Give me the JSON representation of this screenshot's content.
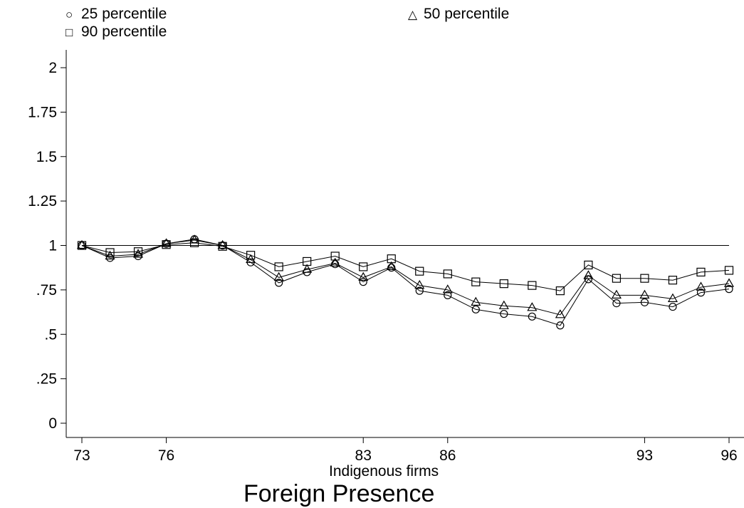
{
  "chart_data": {
    "type": "line",
    "title": "Foreign Presence",
    "xlabel": "Indigenous firms",
    "ylabel": "",
    "xlim": [
      73,
      96
    ],
    "ylim": [
      0,
      2
    ],
    "xticks": [
      73,
      76,
      83,
      86,
      93,
      96
    ],
    "yticks": [
      {
        "value": 0,
        "label": "0"
      },
      {
        "value": 0.25,
        "label": ".25"
      },
      {
        "value": 0.5,
        "label": ".5"
      },
      {
        "value": 0.75,
        "label": ".75"
      },
      {
        "value": 1,
        "label": "1"
      },
      {
        "value": 1.25,
        "label": "1.25"
      },
      {
        "value": 1.5,
        "label": "1.5"
      },
      {
        "value": 1.75,
        "label": "1.75"
      },
      {
        "value": 2,
        "label": "2"
      }
    ],
    "reference_line": 1,
    "grid": false,
    "legend_position": "top",
    "x": [
      73,
      74,
      75,
      76,
      77,
      78,
      79,
      80,
      81,
      82,
      83,
      84,
      85,
      86,
      87,
      88,
      89,
      90,
      91,
      92,
      93,
      94,
      95,
      96
    ],
    "series": [
      {
        "name": "25 percentile",
        "marker": "circle",
        "values": [
          1.0,
          0.93,
          0.94,
          1.01,
          1.035,
          1.0,
          0.905,
          0.79,
          0.85,
          0.895,
          0.795,
          0.875,
          0.745,
          0.72,
          0.64,
          0.615,
          0.6,
          0.55,
          0.81,
          0.675,
          0.68,
          0.655,
          0.735,
          0.755
        ]
      },
      {
        "name": "50 percentile",
        "marker": "triangle",
        "values": [
          1.0,
          0.94,
          0.95,
          1.01,
          1.03,
          1.0,
          0.92,
          0.82,
          0.865,
          0.9,
          0.82,
          0.88,
          0.775,
          0.75,
          0.68,
          0.66,
          0.65,
          0.61,
          0.83,
          0.72,
          0.72,
          0.7,
          0.765,
          0.785
        ]
      },
      {
        "name": "90 percentile",
        "marker": "square",
        "values": [
          1.0,
          0.96,
          0.965,
          1.005,
          1.015,
          0.995,
          0.945,
          0.88,
          0.91,
          0.94,
          0.88,
          0.925,
          0.855,
          0.84,
          0.795,
          0.785,
          0.775,
          0.745,
          0.89,
          0.815,
          0.815,
          0.805,
          0.85,
          0.86
        ]
      }
    ]
  }
}
